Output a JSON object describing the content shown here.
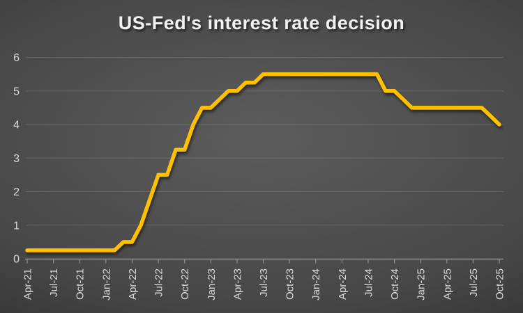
{
  "page": {
    "title": "US-Fed's interest rate decision"
  },
  "colors": {
    "line": "#FFC000",
    "title_text": "#F2F2F2",
    "axis_labels": "#D9D9D9",
    "axis_line": "#8F8F8F",
    "gridline": "rgba(255,255,255,0.14)",
    "background_center": "#5C5C5C",
    "background_mid": "#474747",
    "background_edge": "#242424"
  },
  "chart_data": {
    "type": "line",
    "title": "US-Fed's interest rate decision",
    "xlabel": "",
    "ylabel": "",
    "ylim": [
      0,
      6
    ],
    "y_ticks": [
      0,
      1,
      2,
      3,
      4,
      5,
      6
    ],
    "grid": true,
    "legend": false,
    "x_tick_every": 3,
    "x_tick_labels": [
      "Apr-21",
      "Jul-21",
      "Oct-21",
      "Jan-22",
      "Apr-22",
      "Jul-22",
      "Oct-22",
      "Jan-23",
      "Apr-23",
      "Jul-23",
      "Oct-23",
      "Jan-24",
      "Apr-24",
      "Jul-24",
      "Oct-24",
      "Jan-25",
      "Apr-25",
      "Jul-25",
      "Oct-25"
    ],
    "x": [
      "Apr-21",
      "May-21",
      "Jun-21",
      "Jul-21",
      "Aug-21",
      "Sep-21",
      "Oct-21",
      "Nov-21",
      "Dec-21",
      "Jan-22",
      "Feb-22",
      "Mar-22",
      "Apr-22",
      "May-22",
      "Jun-22",
      "Jul-22",
      "Aug-22",
      "Sep-22",
      "Oct-22",
      "Nov-22",
      "Dec-22",
      "Jan-23",
      "Feb-23",
      "Mar-23",
      "Apr-23",
      "May-23",
      "Jun-23",
      "Jul-23",
      "Aug-23",
      "Sep-23",
      "Oct-23",
      "Nov-23",
      "Dec-23",
      "Jan-24",
      "Feb-24",
      "Mar-24",
      "Apr-24",
      "May-24",
      "Jun-24",
      "Jul-24",
      "Aug-24",
      "Sep-24",
      "Oct-24",
      "Nov-24",
      "Dec-24",
      "Jan-25",
      "Feb-25",
      "Mar-25",
      "Apr-25",
      "May-25",
      "Jun-25",
      "Jul-25",
      "Aug-25",
      "Sep-25",
      "Oct-25"
    ],
    "values": [
      0.25,
      0.25,
      0.25,
      0.25,
      0.25,
      0.25,
      0.25,
      0.25,
      0.25,
      0.25,
      0.25,
      0.5,
      0.5,
      1.0,
      1.75,
      2.5,
      2.5,
      3.25,
      3.25,
      4.0,
      4.5,
      4.5,
      4.75,
      5.0,
      5.0,
      5.25,
      5.25,
      5.5,
      5.5,
      5.5,
      5.5,
      5.5,
      5.5,
      5.5,
      5.5,
      5.5,
      5.5,
      5.5,
      5.5,
      5.5,
      5.5,
      5.0,
      5.0,
      4.75,
      4.5,
      4.5,
      4.5,
      4.5,
      4.5,
      4.5,
      4.5,
      4.5,
      4.5,
      4.25,
      4.0
    ]
  }
}
